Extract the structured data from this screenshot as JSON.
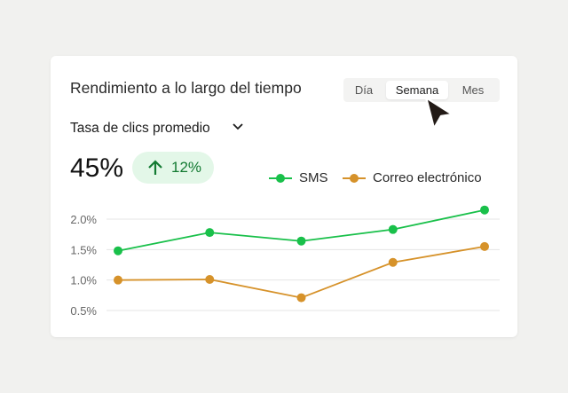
{
  "card": {
    "title": "Rendimiento a lo largo del tiempo",
    "range_tabs": [
      {
        "label": "Día",
        "active": false
      },
      {
        "label": "Semana",
        "active": true
      },
      {
        "label": "Mes",
        "active": false
      }
    ],
    "metric_selector": "Tasa de clics promedio",
    "metric_value": "45%",
    "change_badge": {
      "icon": "arrow-up-icon",
      "value": "12%"
    }
  },
  "colors": {
    "sms": "#19c04a",
    "email": "#d6922a",
    "badge_bg": "#e3f7e8",
    "badge_text": "#137a32"
  },
  "chart_data": {
    "type": "line",
    "x": [
      1,
      2,
      3,
      4,
      5
    ],
    "ylim": [
      0.5,
      2.2
    ],
    "yticks": [
      "2.0%",
      "1.5%",
      "1.0%",
      "0.5%"
    ],
    "ytick_values": [
      2.0,
      1.5,
      1.0,
      0.5
    ],
    "grid": true,
    "legend_placement": "top-right",
    "series": [
      {
        "name": "SMS",
        "color": "#19c04a",
        "values": [
          1.48,
          1.78,
          1.64,
          1.83,
          2.15
        ]
      },
      {
        "name": "Correo electrónico",
        "color": "#d6922a",
        "values": [
          1.0,
          1.01,
          0.71,
          1.29,
          1.55
        ]
      }
    ]
  }
}
